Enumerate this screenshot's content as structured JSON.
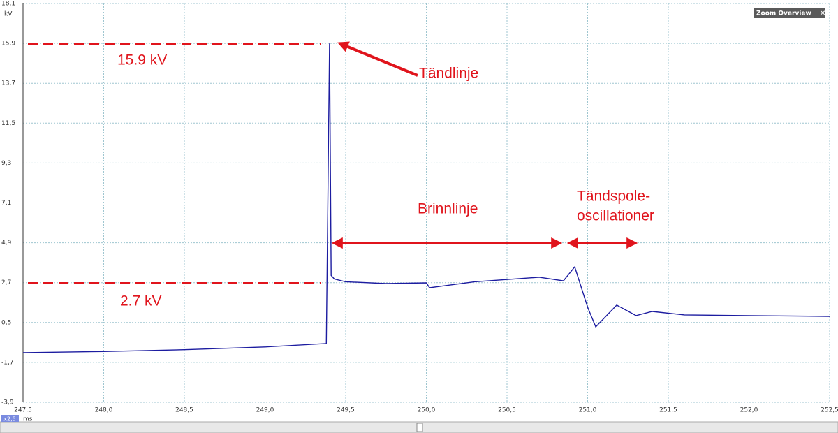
{
  "chart_data": {
    "type": "line",
    "y_unit": "kV",
    "x_unit": "ms",
    "zoom_label": "x2,5",
    "panel_title": "Zoom Overview",
    "annotations": [
      "15.9 kV",
      "2.7 kV",
      "Tändlinje",
      "Brinnlinje",
      "Tändspole-",
      "oscillationer"
    ],
    "xlim": [
      247.5,
      252.5
    ],
    "xticks": [
      {
        "value": 247.5,
        "label": "247,5"
      },
      {
        "value": 248.0,
        "label": "248,0"
      },
      {
        "value": 248.5,
        "label": "248,5"
      },
      {
        "value": 249.0,
        "label": "249,0"
      },
      {
        "value": 249.5,
        "label": "249,5"
      },
      {
        "value": 250.0,
        "label": "250,0"
      },
      {
        "value": 250.5,
        "label": "250,5"
      },
      {
        "value": 251.0,
        "label": "251,0"
      },
      {
        "value": 251.5,
        "label": "251,5"
      },
      {
        "value": 252.0,
        "label": "252,0"
      },
      {
        "value": 252.5,
        "label": "252,5"
      }
    ],
    "ylim": [
      -3.9,
      18.1
    ],
    "yticks": [
      {
        "value": 18.1,
        "label": "18,1"
      },
      {
        "value": 15.9,
        "label": "15,9"
      },
      {
        "value": 13.7,
        "label": "13,7"
      },
      {
        "value": 11.5,
        "label": "11,5"
      },
      {
        "value": 9.3,
        "label": "9,3"
      },
      {
        "value": 7.1,
        "label": "7,1"
      },
      {
        "value": 4.9,
        "label": "4,9"
      },
      {
        "value": 2.7,
        "label": "2,7"
      },
      {
        "value": 0.5,
        "label": "0,5"
      },
      {
        "value": -1.7,
        "label": "-1,7"
      },
      {
        "value": -3.9,
        "label": "-3,9"
      }
    ],
    "grid": true,
    "series": [
      {
        "color": "#1c1ca0",
        "x": [
          247.5,
          248.0,
          248.5,
          249.0,
          249.38,
          249.4,
          249.41,
          249.43,
          249.5,
          249.75,
          250.0,
          250.02,
          250.3,
          250.7,
          250.85,
          250.92,
          251.0,
          251.05,
          251.18,
          251.3,
          251.4,
          251.6,
          252.0,
          252.5
        ],
        "values": [
          -1.16,
          -1.1,
          -1.0,
          -0.85,
          -0.66,
          15.9,
          3.1,
          2.9,
          2.75,
          2.65,
          2.69,
          2.42,
          2.75,
          3.0,
          2.8,
          3.57,
          1.34,
          0.26,
          1.46,
          0.88,
          1.11,
          0.92,
          0.88,
          0.84
        ]
      }
    ]
  }
}
